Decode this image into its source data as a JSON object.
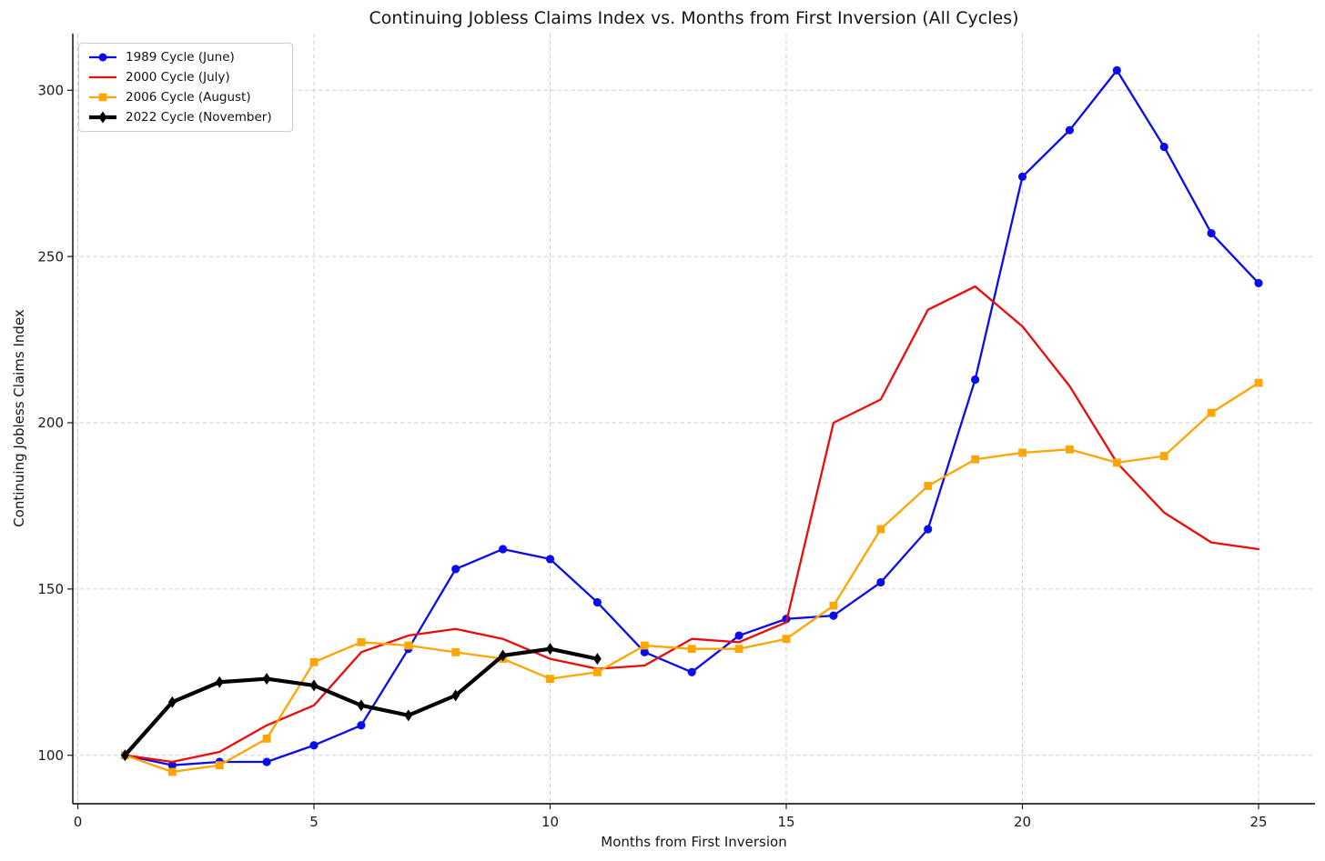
{
  "title": "Continuing Jobless Claims Index vs. Months from First Inversion (All Cycles)",
  "axes": {
    "xlabel": "Months from First Inversion",
    "ylabel": "Continuing Jobless Claims Index",
    "x_ticks": [
      0,
      5,
      10,
      15,
      20,
      25
    ],
    "y_ticks": [
      100,
      150,
      200,
      250,
      300
    ],
    "xlim": [
      -0.1,
      26.2
    ],
    "ylim": [
      85,
      317
    ],
    "grid": true,
    "grid_color": "#cfcfcf"
  },
  "legend": {
    "position": "upper-left"
  },
  "chart_data": {
    "type": "line",
    "x": [
      1,
      2,
      3,
      4,
      5,
      6,
      7,
      8,
      9,
      10,
      11,
      12,
      13,
      14,
      15,
      16,
      17,
      18,
      19,
      20,
      21,
      22,
      23,
      24,
      25
    ],
    "series": [
      {
        "name": "1989 Cycle (June)",
        "color": "#0b0bf0",
        "marker": "circle",
        "line_width": 2.3,
        "values": [
          100,
          97,
          98,
          98,
          103,
          109,
          132,
          156,
          162,
          159,
          146,
          131,
          125,
          136,
          141,
          142,
          152,
          168,
          213,
          274,
          288,
          306,
          283,
          257,
          242
        ]
      },
      {
        "name": "2000 Cycle (July)",
        "color": "#ee0a0a",
        "marker": "none",
        "line_width": 2.3,
        "values": [
          100,
          98,
          101,
          109,
          115,
          131,
          136,
          138,
          135,
          129,
          126,
          127,
          135,
          134,
          140,
          200,
          207,
          234,
          241,
          229,
          211,
          188,
          173,
          164,
          162
        ]
      },
      {
        "name": "2006 Cycle (August)",
        "color": "#ffa500",
        "marker": "square",
        "line_width": 2.3,
        "values": [
          100,
          95,
          97,
          105,
          128,
          134,
          133,
          131,
          129,
          123,
          125,
          133,
          132,
          132,
          135,
          145,
          168,
          181,
          189,
          191,
          192,
          188,
          190,
          203,
          212
        ]
      },
      {
        "name": "2022 Cycle (November)",
        "color": "#000000",
        "marker": "diamond",
        "line_width": 4.2,
        "values": [
          100,
          116,
          122,
          123,
          121,
          115,
          112,
          118,
          130,
          132,
          129
        ]
      }
    ]
  }
}
